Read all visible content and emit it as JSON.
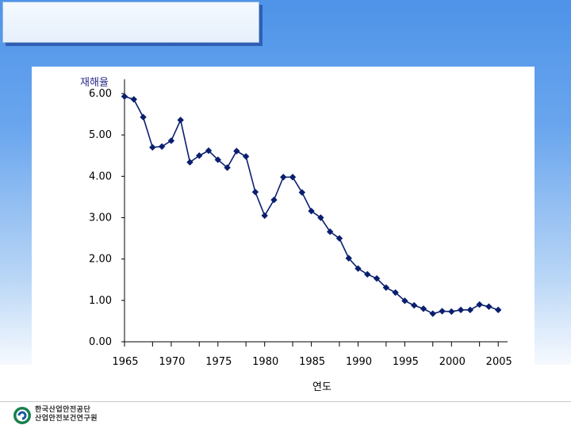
{
  "footer": {
    "org_line1": "한국산업안전공단",
    "org_line2": "산업안전보건연구원"
  },
  "chart_data": {
    "type": "line",
    "ylabel": "재해율",
    "xlabel": "연도",
    "x": [
      1965,
      1966,
      1967,
      1968,
      1969,
      1970,
      1971,
      1972,
      1973,
      1974,
      1975,
      1976,
      1977,
      1978,
      1979,
      1980,
      1981,
      1982,
      1983,
      1984,
      1985,
      1986,
      1987,
      1988,
      1989,
      1990,
      1991,
      1992,
      1993,
      1994,
      1995,
      1996,
      1997,
      1998,
      1999,
      2000,
      2001,
      2002,
      2003,
      2004,
      2005
    ],
    "series": [
      {
        "values": [
          5.93,
          5.86,
          5.43,
          4.7,
          4.72,
          4.86,
          5.36,
          4.34,
          4.5,
          4.62,
          4.4,
          4.21,
          4.61,
          4.48,
          3.62,
          3.05,
          3.43,
          3.98,
          3.98,
          3.61,
          3.16,
          3.0,
          2.66,
          2.5,
          2.02,
          1.77,
          1.63,
          1.53,
          1.31,
          1.19,
          0.99,
          0.88,
          0.8,
          0.68,
          0.74,
          0.73,
          0.77,
          0.77,
          0.9,
          0.85,
          0.77
        ],
        "color": "#0a1f6e"
      }
    ],
    "yticks": [
      "0.00",
      "1.00",
      "2.00",
      "3.00",
      "4.00",
      "5.00",
      "6.00"
    ],
    "xticks": [
      "1965",
      "1970",
      "1975",
      "1980",
      "1985",
      "1990",
      "1995",
      "2000",
      "2005"
    ],
    "ylim": [
      0,
      6
    ],
    "xlim": [
      1965,
      2006
    ],
    "grid": false,
    "legend": "none"
  }
}
